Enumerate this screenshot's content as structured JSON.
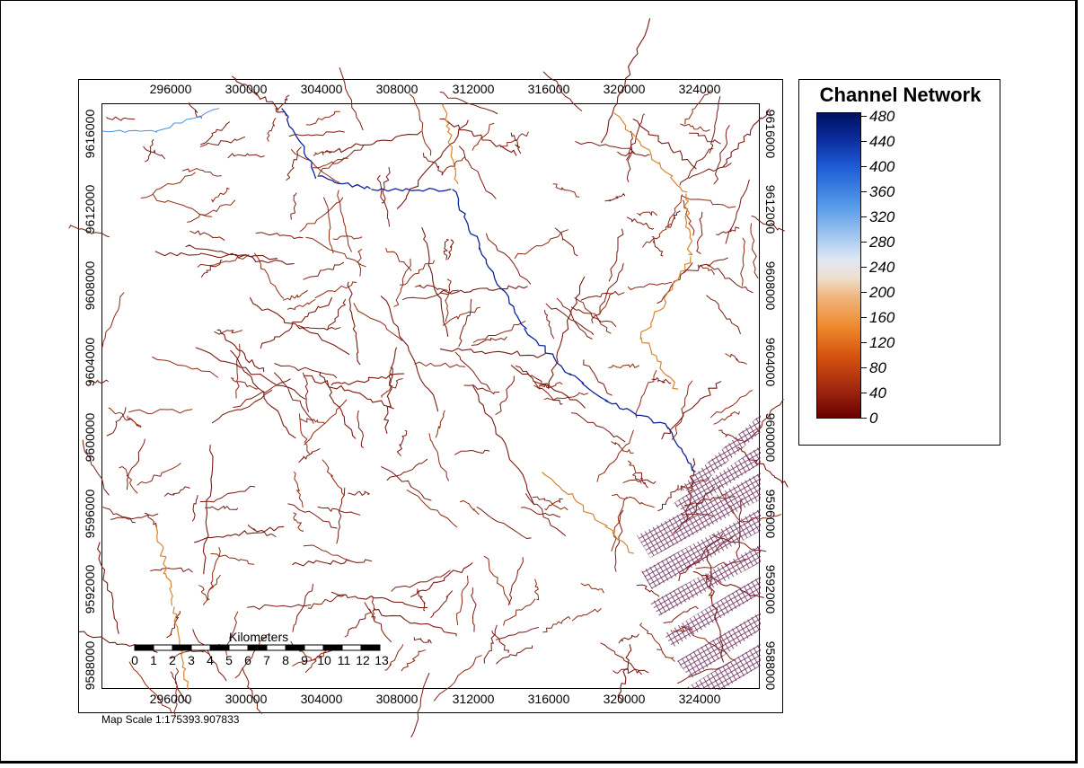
{
  "map": {
    "x_ticks": [
      "296000",
      "300000",
      "304000",
      "308000",
      "312000",
      "316000",
      "320000",
      "324000"
    ],
    "y_ticks": [
      "9616000",
      "9612000",
      "9608000",
      "9604000",
      "9600000",
      "9596000",
      "9592000",
      "9588000"
    ],
    "scale_bar": {
      "title": "Kilometers",
      "labels": [
        "0",
        "1",
        "2",
        "3",
        "4",
        "5",
        "6",
        "7",
        "8",
        "9",
        "10",
        "11",
        "12",
        "13"
      ]
    },
    "map_scale_text": "Map Scale 1:175393.907833"
  },
  "legend": {
    "title": "Channel Network",
    "labels": [
      "480",
      "440",
      "400",
      "360",
      "320",
      "280",
      "240",
      "200",
      "160",
      "120",
      "80",
      "40",
      "0"
    ],
    "colors": {
      "low": "#6b0000",
      "mid": "#eee0d0",
      "high": "#00125e"
    }
  },
  "colors": {
    "channel_low": "#7a1a12",
    "channel_mid": "#d9852c",
    "channel_high": "#10249a",
    "hatch": "#6a2a5a"
  }
}
